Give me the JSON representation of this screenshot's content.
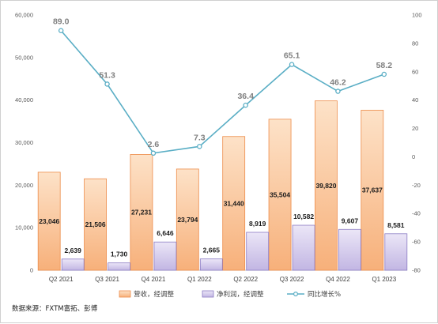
{
  "chart_data": {
    "type": "bar",
    "categories": [
      "Q2 2021",
      "Q3 2021",
      "Q4 2021",
      "Q1 2022",
      "Q2 2022",
      "Q3 2022",
      "Q4 2022",
      "Q1 2023"
    ],
    "series": [
      {
        "name": "营收，经调整",
        "kind": "bar",
        "axis": "left",
        "values": [
          23046,
          21506,
          27231,
          23794,
          31440,
          35504,
          39820,
          37637
        ],
        "labels": [
          "23,046",
          "21,506",
          "27,231",
          "23,794",
          "31,440",
          "35,504",
          "39,820",
          "37,637"
        ]
      },
      {
        "name": "净利润，经调整",
        "kind": "bar",
        "axis": "left",
        "values": [
          2639,
          1730,
          6646,
          2665,
          8919,
          10582,
          9607,
          8581
        ],
        "labels": [
          "2,639",
          "1,730",
          "6,646",
          "2,665",
          "8,919",
          "10,582",
          "9,607",
          "8,581"
        ]
      },
      {
        "name": "同比增长%",
        "kind": "line",
        "axis": "right",
        "values": [
          89.0,
          51.3,
          2.6,
          7.3,
          36.4,
          65.1,
          46.2,
          58.2
        ],
        "labels": [
          "89.0",
          "51.3",
          "2.6",
          "7.3",
          "36.4",
          "65.1",
          "46.2",
          "58.2"
        ]
      }
    ],
    "y_left": {
      "min": 0,
      "max": 60000,
      "ticks": [
        0,
        10000,
        20000,
        30000,
        40000,
        50000,
        60000
      ],
      "tick_labels": [
        "0",
        "10,000",
        "20,000",
        "30,000",
        "40,000",
        "50,000",
        "60,000"
      ]
    },
    "y_right": {
      "min": -80,
      "max": 100,
      "ticks": [
        -80,
        -60,
        -40,
        -20,
        0,
        20,
        40,
        60,
        80,
        100
      ],
      "tick_labels": [
        "-80",
        "-60",
        "-40",
        "-20",
        "0",
        "20",
        "40",
        "60",
        "80",
        "100"
      ]
    },
    "grid": false,
    "legend": "bottom",
    "colors": {
      "revenue_fill_top": "#fde2c8",
      "revenue_fill_bottom": "#f7b07a",
      "revenue_border": "#ed8c4a",
      "profit_fill_top": "#ebe6f7",
      "profit_fill_bottom": "#c2b6e3",
      "profit_border": "#8c7cc4",
      "line": "#5aaec5",
      "marker_fill": "#ffffff"
    }
  },
  "footer": {
    "source": "数据来源：FXTM富拓、彭博"
  }
}
